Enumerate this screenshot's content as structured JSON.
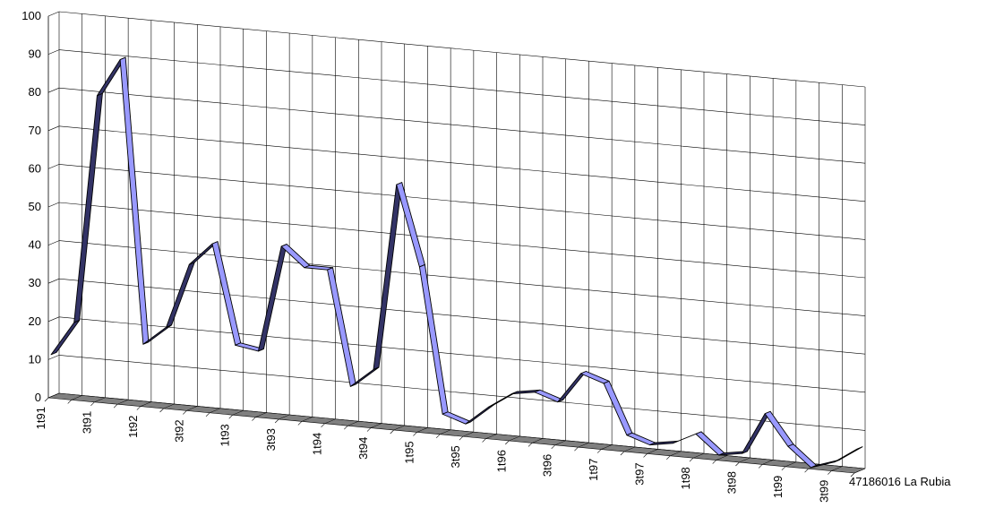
{
  "chart_data": {
    "type": "line",
    "style": "3d-ribbon",
    "x": [
      "1t91",
      "2t91",
      "3t91",
      "4t91",
      "1t92",
      "2t92",
      "3t92",
      "4t92",
      "1t93",
      "2t93",
      "3t93",
      "4t93",
      "1t94",
      "2t94",
      "3t94",
      "4t94",
      "1t95",
      "2t95",
      "3t95",
      "4t95",
      "1t96",
      "2t96",
      "3t96",
      "4t96",
      "1t97",
      "2t97",
      "3t97",
      "4t97",
      "1t98",
      "2t98",
      "3t98",
      "4t98",
      "1t99",
      "2t99",
      "3t99",
      "4t99"
    ],
    "x_tick_labels": [
      "1t91",
      "3t91",
      "1t92",
      "3t92",
      "1t93",
      "3t93",
      "1t94",
      "3t94",
      "1t95",
      "3t95",
      "1t96",
      "3t96",
      "1t97",
      "3t97",
      "1t98",
      "3t98",
      "1t99",
      "3t99"
    ],
    "series": [
      {
        "name": "47186016 La Rubia",
        "values": [
          11,
          20,
          80,
          90,
          16,
          21,
          38,
          44,
          18,
          17,
          45,
          40,
          40,
          10,
          15,
          64,
          43,
          5,
          3,
          8,
          12,
          13,
          11,
          19,
          17,
          4,
          2,
          3,
          6,
          1,
          2,
          13,
          5,
          0,
          2,
          6
        ]
      }
    ],
    "ylim": [
      0,
      100
    ],
    "y_ticks": [
      "0",
      "10",
      "20",
      "30",
      "40",
      "50",
      "60",
      "70",
      "80",
      "90",
      "100"
    ],
    "grid": true,
    "legend": "none",
    "colors": {
      "ribbon_top": "#9999ff",
      "ribbon_side": "#333366",
      "floor": "#808080",
      "gridline": "#000000"
    }
  }
}
